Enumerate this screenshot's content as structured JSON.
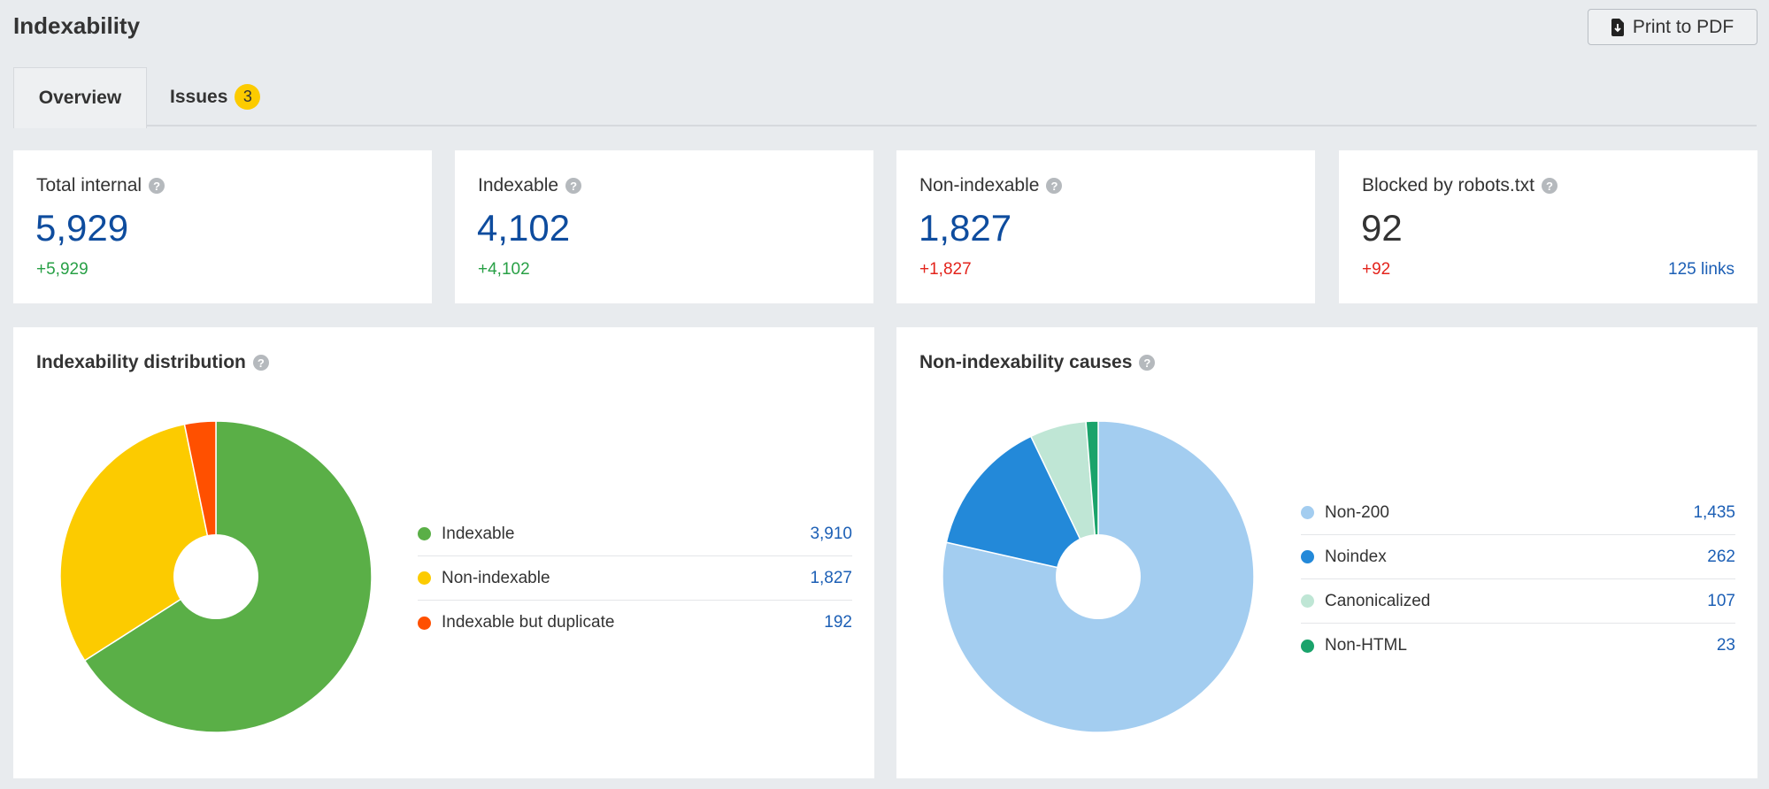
{
  "header": {
    "title": "Indexability",
    "print_label": "Print to PDF",
    "print_icon": "file-download-icon"
  },
  "tabs": [
    {
      "label": "Overview",
      "active": true
    },
    {
      "label": "Issues",
      "badge": "3"
    }
  ],
  "cards": [
    {
      "label": "Total internal",
      "value": "5,929",
      "delta": "+5,929",
      "delta_color": "green"
    },
    {
      "label": "Indexable",
      "value": "4,102",
      "delta": "+4,102",
      "delta_color": "green"
    },
    {
      "label": "Non-indexable",
      "value": "1,827",
      "delta": "+1,827",
      "delta_color": "red"
    },
    {
      "label": "Blocked by robots.txt",
      "value": "92",
      "delta": "+92",
      "delta_color": "red",
      "link": "125 links"
    }
  ],
  "chart_data": [
    {
      "type": "pie",
      "title": "Indexability distribution",
      "donut": true,
      "categories": [
        "Indexable",
        "Non-indexable",
        "Indexable but duplicate"
      ],
      "values": [
        3910,
        1827,
        192
      ],
      "labels": [
        "3,910",
        "1,827",
        "192"
      ],
      "colors": [
        "#5aaf47",
        "#fccb00",
        "#ff5000"
      ],
      "legend": "right"
    },
    {
      "type": "pie",
      "title": "Non-indexability causes",
      "donut": true,
      "categories": [
        "Non-200",
        "Noindex",
        "Canonicalized",
        "Non-HTML"
      ],
      "values": [
        1435,
        262,
        107,
        23
      ],
      "labels": [
        "1,435",
        "262",
        "107",
        "23"
      ],
      "colors": [
        "#a3cdf0",
        "#2389d9",
        "#bfe6d5",
        "#1aa36b"
      ],
      "legend": "right"
    }
  ]
}
